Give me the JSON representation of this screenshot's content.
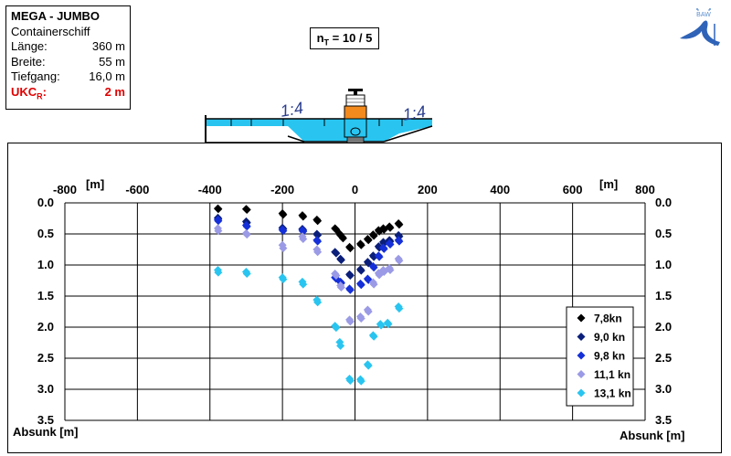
{
  "info_box": {
    "title": "MEGA - JUMBO",
    "ship_type": "Containerschiff",
    "length_label": "Länge:",
    "length_value": "360 m",
    "width_label": "Breite:",
    "width_value": "55 m",
    "draft_label": "Tiefgang:",
    "draft_value": "16,0 m",
    "ukc_label_main": "UKC",
    "ukc_label_sub": "R",
    "ukc_label_colon": ":",
    "ukc_value": "2 m"
  },
  "nt_box": {
    "main": "n",
    "sub": "T",
    "rest": " = 10 / 5"
  },
  "logo": {
    "text": "BAW",
    "icon": "baw-logo-icon"
  },
  "schematic": {
    "slope_left": "1:4",
    "slope_right": "1:4",
    "ship_icon": "container-ship-icon",
    "water_color": "#29c5f0"
  },
  "chart_data": {
    "type": "scatter",
    "xlim": [
      -800,
      800
    ],
    "ylim": [
      0,
      3.5
    ],
    "y_inverted": true,
    "x_unit_label": "[m]",
    "ylabel": "Absunk [m]",
    "x_ticks": [
      "-800",
      "-600",
      "-400",
      "-200",
      "0",
      "200",
      "400",
      "600",
      "800"
    ],
    "y_ticks": [
      "0.0",
      "0.5",
      "1.0",
      "1.5",
      "2.0",
      "2.5",
      "3.0",
      "3.5"
    ],
    "grid": true,
    "legend_position": "bottom-right",
    "series": [
      {
        "name": "7,8kn",
        "color": "#000000",
        "points": [
          [
            -378,
            0.09
          ],
          [
            -377,
            0.1
          ],
          [
            -300,
            0.1
          ],
          [
            -298,
            0.11
          ],
          [
            -200,
            0.17
          ],
          [
            -198,
            0.19
          ],
          [
            -145,
            0.2
          ],
          [
            -143,
            0.22
          ],
          [
            -105,
            0.27
          ],
          [
            -103,
            0.29
          ],
          [
            -55,
            0.41
          ],
          [
            -52,
            0.43
          ],
          [
            -42,
            0.5
          ],
          [
            -40,
            0.52
          ],
          [
            -35,
            0.55
          ],
          [
            -33,
            0.57
          ],
          [
            -15,
            0.71
          ],
          [
            -13,
            0.73
          ],
          [
            15,
            0.66
          ],
          [
            17,
            0.68
          ],
          [
            35,
            0.58
          ],
          [
            37,
            0.6
          ],
          [
            50,
            0.51
          ],
          [
            52,
            0.53
          ],
          [
            65,
            0.44
          ],
          [
            67,
            0.46
          ],
          [
            78,
            0.41
          ],
          [
            80,
            0.43
          ],
          [
            95,
            0.38
          ],
          [
            97,
            0.4
          ],
          [
            120,
            0.33
          ],
          [
            122,
            0.35
          ]
        ]
      },
      {
        "name": "9,0 kn",
        "color": "#0b1f7a",
        "points": [
          [
            -378,
            0.24
          ],
          [
            -377,
            0.26
          ],
          [
            -300,
            0.3
          ],
          [
            -298,
            0.32
          ],
          [
            -200,
            0.4
          ],
          [
            -198,
            0.42
          ],
          [
            -145,
            0.42
          ],
          [
            -143,
            0.44
          ],
          [
            -105,
            0.5
          ],
          [
            -103,
            0.52
          ],
          [
            -55,
            0.79
          ],
          [
            -52,
            0.81
          ],
          [
            -40,
            0.9
          ],
          [
            -38,
            0.92
          ],
          [
            -15,
            1.15
          ],
          [
            -13,
            1.17
          ],
          [
            15,
            1.07
          ],
          [
            17,
            1.09
          ],
          [
            35,
            0.95
          ],
          [
            37,
            0.97
          ],
          [
            50,
            0.85
          ],
          [
            52,
            0.87
          ],
          [
            65,
            0.7
          ],
          [
            67,
            0.72
          ],
          [
            78,
            0.63
          ],
          [
            80,
            0.65
          ],
          [
            95,
            0.6
          ],
          [
            97,
            0.62
          ],
          [
            120,
            0.52
          ],
          [
            122,
            0.54
          ]
        ]
      },
      {
        "name": "9,8 kn",
        "color": "#1530d8",
        "points": [
          [
            -378,
            0.27
          ],
          [
            -377,
            0.29
          ],
          [
            -300,
            0.36
          ],
          [
            -298,
            0.38
          ],
          [
            -200,
            0.43
          ],
          [
            -198,
            0.45
          ],
          [
            -145,
            0.44
          ],
          [
            -143,
            0.46
          ],
          [
            -105,
            0.6
          ],
          [
            -103,
            0.62
          ],
          [
            -55,
            1.2
          ],
          [
            -52,
            1.22
          ],
          [
            -40,
            1.27
          ],
          [
            -38,
            1.29
          ],
          [
            -15,
            1.38
          ],
          [
            -13,
            1.4
          ],
          [
            15,
            1.3
          ],
          [
            17,
            1.32
          ],
          [
            35,
            1.22
          ],
          [
            37,
            1.24
          ],
          [
            50,
            1.02
          ],
          [
            52,
            1.04
          ],
          [
            65,
            0.85
          ],
          [
            67,
            0.87
          ],
          [
            78,
            0.72
          ],
          [
            80,
            0.74
          ],
          [
            95,
            0.65
          ],
          [
            97,
            0.67
          ],
          [
            120,
            0.6
          ],
          [
            122,
            0.62
          ]
        ]
      },
      {
        "name": "11,1 kn",
        "color": "#9a9ae6",
        "points": [
          [
            -378,
            0.41
          ],
          [
            -377,
            0.45
          ],
          [
            -300,
            0.49
          ],
          [
            -298,
            0.51
          ],
          [
            -200,
            0.68
          ],
          [
            -198,
            0.73
          ],
          [
            -145,
            0.54
          ],
          [
            -143,
            0.58
          ],
          [
            -105,
            0.75
          ],
          [
            -103,
            0.79
          ],
          [
            -55,
            1.14
          ],
          [
            -52,
            1.17
          ],
          [
            -40,
            1.33
          ],
          [
            -38,
            1.36
          ],
          [
            -15,
            1.88
          ],
          [
            -13,
            1.91
          ],
          [
            15,
            1.83
          ],
          [
            17,
            1.86
          ],
          [
            35,
            1.72
          ],
          [
            37,
            1.75
          ],
          [
            50,
            1.28
          ],
          [
            52,
            1.31
          ],
          [
            65,
            1.13
          ],
          [
            67,
            1.16
          ],
          [
            78,
            1.08
          ],
          [
            80,
            1.11
          ],
          [
            95,
            1.05
          ],
          [
            97,
            1.08
          ],
          [
            120,
            0.9
          ],
          [
            122,
            0.93
          ]
        ]
      },
      {
        "name": "13,1 kn",
        "color": "#29c5f0",
        "points": [
          [
            -378,
            1.08
          ],
          [
            -377,
            1.12
          ],
          [
            -300,
            1.11
          ],
          [
            -298,
            1.14
          ],
          [
            -200,
            1.2
          ],
          [
            -198,
            1.23
          ],
          [
            -145,
            1.27
          ],
          [
            -143,
            1.31
          ],
          [
            -105,
            1.56
          ],
          [
            -103,
            1.6
          ],
          [
            -55,
            1.98
          ],
          [
            -52,
            2.01
          ],
          [
            -42,
            2.24
          ],
          [
            -40,
            2.3
          ],
          [
            -15,
            2.83
          ],
          [
            -13,
            2.86
          ],
          [
            15,
            2.84
          ],
          [
            17,
            2.87
          ],
          [
            35,
            2.6
          ],
          [
            37,
            2.62
          ],
          [
            50,
            2.13
          ],
          [
            52,
            2.15
          ],
          [
            70,
            1.95
          ],
          [
            72,
            1.97
          ],
          [
            90,
            1.93
          ],
          [
            92,
            1.95
          ],
          [
            120,
            1.67
          ],
          [
            122,
            1.7
          ]
        ]
      }
    ]
  }
}
